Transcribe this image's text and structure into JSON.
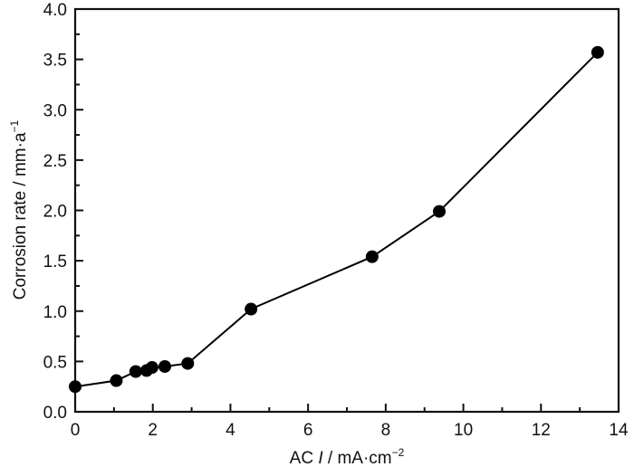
{
  "chart_data": {
    "type": "line",
    "title": "",
    "xlabel": "AC I / mA·cm⁻²",
    "xlabel_parts": {
      "prefix": "AC ",
      "italic": "I",
      "unit": " / mA·cm",
      "sup": "−2"
    },
    "ylabel": "Corrosion rate / mm·a⁻¹",
    "ylabel_parts": {
      "text": "Corrosion rate / mm·a",
      "sup": "−1"
    },
    "xlim": [
      0,
      14
    ],
    "ylim": [
      0.0,
      4.0
    ],
    "xticks": [
      0,
      2,
      4,
      6,
      8,
      10,
      12,
      14
    ],
    "xtick_labels": [
      "0",
      "2",
      "4",
      "6",
      "8",
      "10",
      "12",
      "14"
    ],
    "x_minor_step": 1,
    "yticks": [
      0.0,
      0.5,
      1.0,
      1.5,
      2.0,
      2.5,
      3.0,
      3.5,
      4.0
    ],
    "ytick_labels": [
      "0.0",
      "0.5",
      "1.0",
      "1.5",
      "2.0",
      "2.5",
      "3.0",
      "3.5",
      "4.0"
    ],
    "y_minor_step": 0.25,
    "grid": false,
    "legend": null,
    "marker": "filled-circle",
    "series": [
      {
        "name": "Corrosion rate",
        "color": "#000000",
        "x": [
          0.0,
          1.06,
          1.56,
          1.84,
          1.98,
          2.31,
          2.9,
          4.53,
          7.65,
          9.38,
          13.46
        ],
        "y": [
          0.25,
          0.31,
          0.4,
          0.41,
          0.44,
          0.45,
          0.48,
          1.02,
          1.54,
          1.99,
          3.57
        ]
      }
    ]
  }
}
